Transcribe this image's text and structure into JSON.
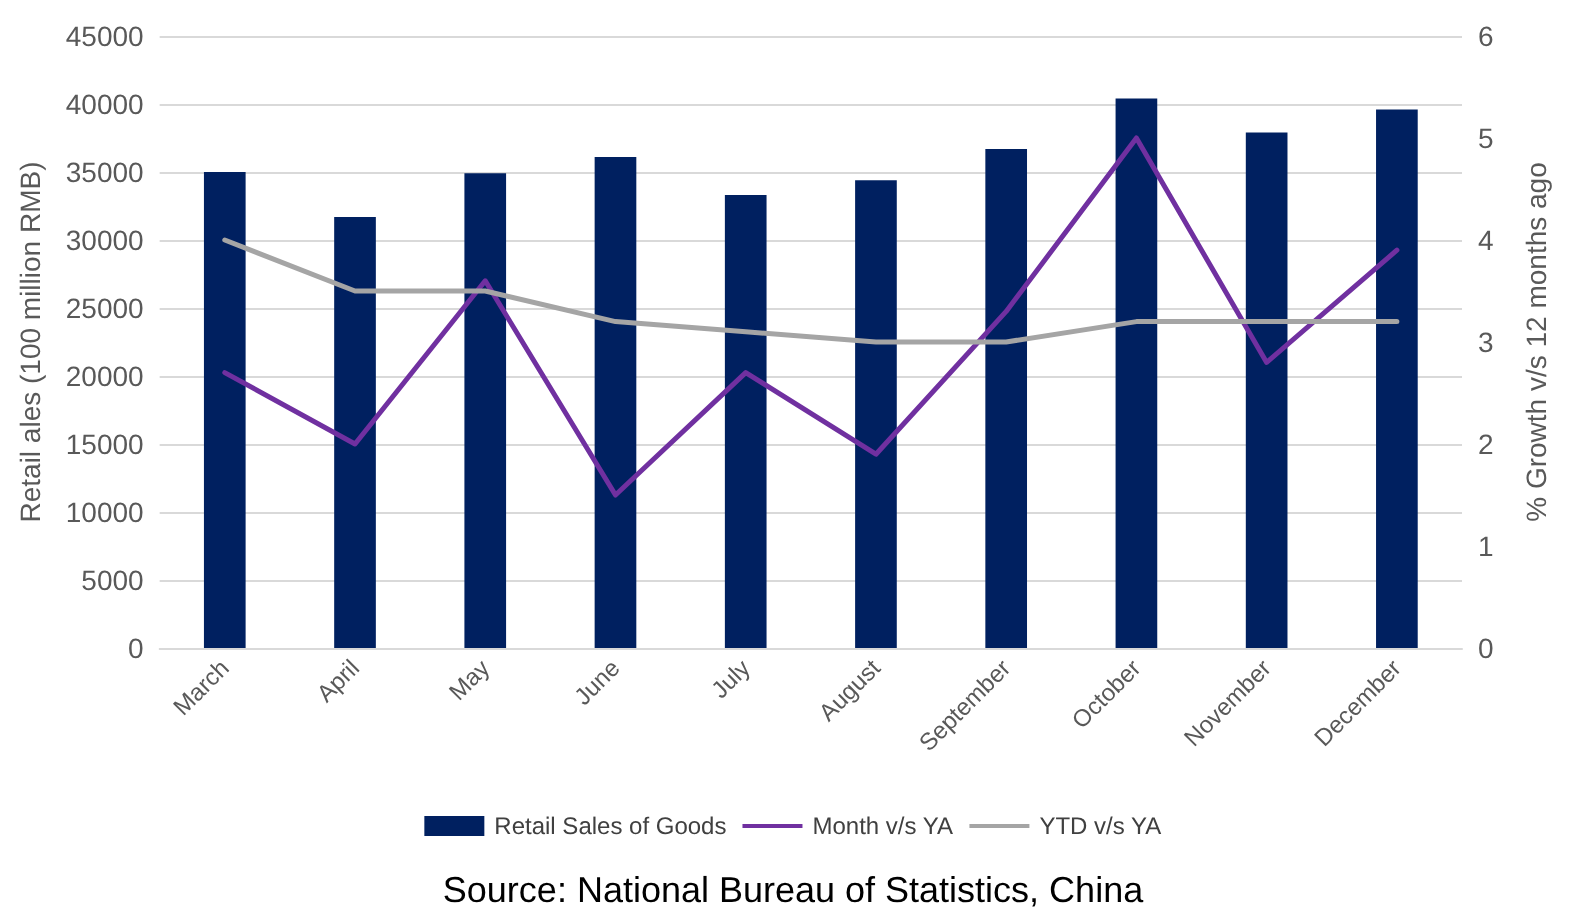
{
  "chart_data": {
    "type": "bar",
    "ylabel": "Retail ales (100 million RMB)",
    "y2label": "% Growth v/s 12 months ago",
    "categories": [
      "March",
      "April",
      "May",
      "June",
      "July",
      "August",
      "September",
      "October",
      "November",
      "December"
    ],
    "series": [
      {
        "name": "Retail Sales of Goods",
        "color": "#002060",
        "values": [
          35000,
          31700,
          34900,
          36100,
          33300,
          34400,
          36700,
          40400,
          37900,
          39600
        ]
      },
      {
        "name": "Month v/s YA",
        "type": "line",
        "axis": "y2",
        "color": "#7030a0",
        "values": [
          2.7,
          2.0,
          3.6,
          1.5,
          2.7,
          1.9,
          3.3,
          5.0,
          2.8,
          3.9
        ]
      },
      {
        "name": "YTD v/s YA",
        "type": "line",
        "axis": "y2",
        "color": "#a5a5a5",
        "values": [
          4.0,
          3.5,
          3.5,
          3.2,
          3.1,
          3.0,
          3.0,
          3.2,
          3.2,
          3.2
        ]
      }
    ],
    "ylim": [
      0,
      45000
    ],
    "yticks": [
      0,
      5000,
      10000,
      15000,
      20000,
      25000,
      30000,
      35000,
      40000,
      45000
    ],
    "y2lim": [
      0,
      6
    ],
    "y2ticks": [
      0,
      1,
      2,
      3,
      4,
      5,
      6
    ],
    "grid": "y",
    "legend": "bottom",
    "marker": "none",
    "line_style": "solid",
    "annotations": [
      "Source: National Bureau of Statistics, China"
    ]
  }
}
